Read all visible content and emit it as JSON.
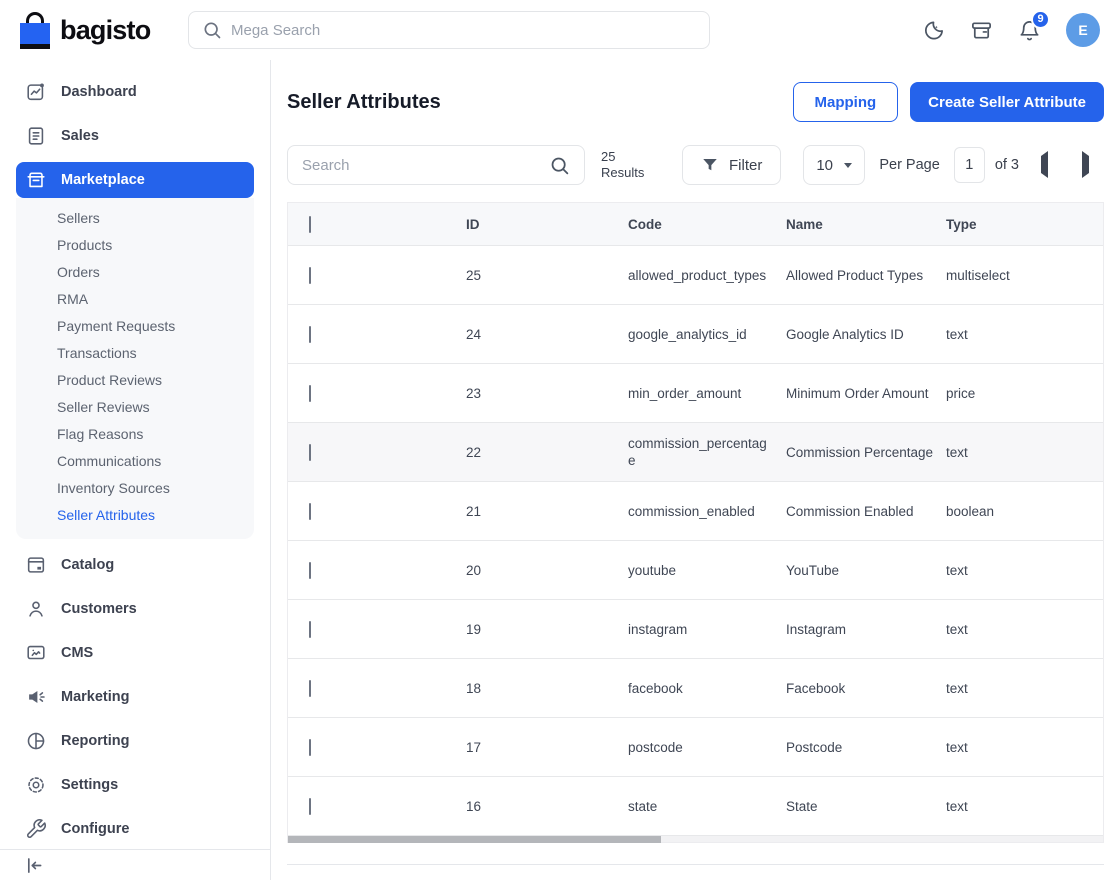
{
  "colors": {
    "accent": "#2563eb",
    "logo_blue": "#2463f2",
    "avatar_bg": "#5d9ce6",
    "active_item_bg": "#2563eb",
    "header_row_bg": "#f7f8fa"
  },
  "header": {
    "brand": "bagisto",
    "search_placeholder": "Mega Search",
    "notification_count": "9",
    "avatar_initial": "E",
    "icons": [
      "moon-icon",
      "store-icon",
      "bell-icon"
    ]
  },
  "sidebar": {
    "items": [
      {
        "label": "Dashboard",
        "icon": "dashboard-icon",
        "active": false
      },
      {
        "label": "Sales",
        "icon": "sales-icon",
        "active": false
      },
      {
        "label": "Marketplace",
        "icon": "marketplace-icon",
        "active": true,
        "children": [
          "Sellers",
          "Products",
          "Orders",
          "RMA",
          "Payment Requests",
          "Transactions",
          "Product Reviews",
          "Seller Reviews",
          "Flag Reasons",
          "Communications",
          "Inventory Sources",
          "Seller Attributes"
        ],
        "active_child": "Seller Attributes"
      },
      {
        "label": "Catalog",
        "icon": "catalog-icon",
        "active": false
      },
      {
        "label": "Customers",
        "icon": "customers-icon",
        "active": false
      },
      {
        "label": "CMS",
        "icon": "cms-icon",
        "active": false
      },
      {
        "label": "Marketing",
        "icon": "marketing-icon",
        "active": false
      },
      {
        "label": "Reporting",
        "icon": "reporting-icon",
        "active": false
      },
      {
        "label": "Settings",
        "icon": "settings-icon",
        "active": false
      },
      {
        "label": "Configure",
        "icon": "configure-icon",
        "active": false
      }
    ],
    "collapse_icon": "collapse-sidebar-icon"
  },
  "page": {
    "title": "Seller Attributes",
    "mapping_label": "Mapping",
    "create_label": "Create Seller Attribute"
  },
  "toolbar": {
    "search_placeholder": "Search",
    "results_count": "25",
    "results_label": "Results",
    "filter_label": "Filter",
    "per_page_value": "10",
    "per_page_label": "Per Page",
    "page_value": "1",
    "page_total_label": "of 3"
  },
  "table": {
    "columns": [
      "ID",
      "Code",
      "Name",
      "Type"
    ],
    "rows": [
      {
        "id": "25",
        "code": "allowed_product_types",
        "name": "Allowed Product Types",
        "type": "multiselect",
        "highlight": false
      },
      {
        "id": "24",
        "code": "google_analytics_id",
        "name": "Google Analytics ID",
        "type": "text",
        "highlight": false
      },
      {
        "id": "23",
        "code": "min_order_amount",
        "name": "Minimum Order Amount",
        "type": "price",
        "highlight": false
      },
      {
        "id": "22",
        "code": "commission_percentage",
        "name": "Commission Percentage",
        "type": "text",
        "highlight": true
      },
      {
        "id": "21",
        "code": "commission_enabled",
        "name": "Commission Enabled",
        "type": "boolean",
        "highlight": false
      },
      {
        "id": "20",
        "code": "youtube",
        "name": "YouTube",
        "type": "text",
        "highlight": false
      },
      {
        "id": "19",
        "code": "instagram",
        "name": "Instagram",
        "type": "text",
        "highlight": false
      },
      {
        "id": "18",
        "code": "facebook",
        "name": "Facebook",
        "type": "text",
        "highlight": false
      },
      {
        "id": "17",
        "code": "postcode",
        "name": "Postcode",
        "type": "text",
        "highlight": false
      },
      {
        "id": "16",
        "code": "state",
        "name": "State",
        "type": "text",
        "highlight": false
      }
    ]
  }
}
